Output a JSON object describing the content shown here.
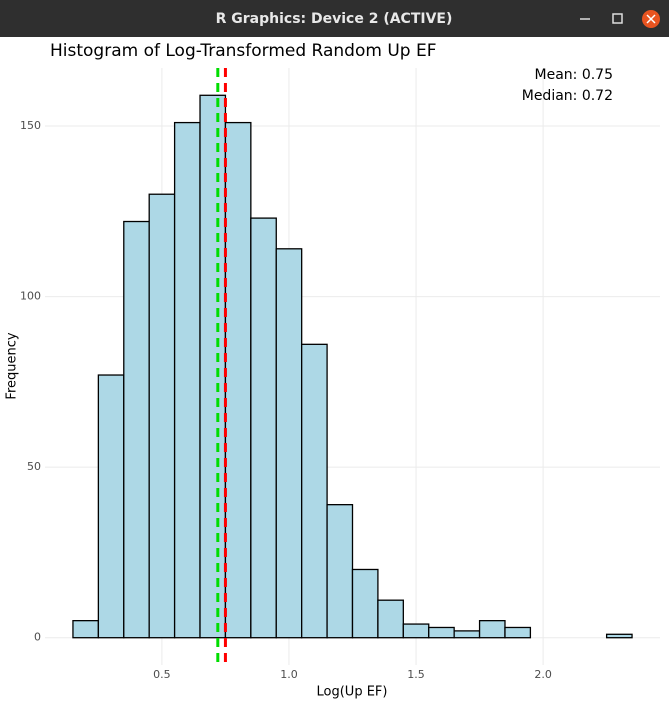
{
  "window_title": "R Graphics: Device 2 (ACTIVE)",
  "chart_data": {
    "type": "histogram",
    "title": "Histogram of Log-Transformed Random Up EF",
    "x_label": "Log(Up EF)",
    "y_label": "Frequency",
    "bins": [
      0.15,
      0.25,
      0.35,
      0.45,
      0.55,
      0.65,
      0.75,
      0.85,
      0.95,
      1.05,
      1.15,
      1.25,
      1.35,
      1.45,
      1.55,
      1.65,
      1.75,
      1.85,
      1.95,
      2.05,
      2.15,
      2.25,
      2.35
    ],
    "values": [
      5,
      77,
      122,
      130,
      151,
      159,
      151,
      123,
      114,
      86,
      39,
      20,
      11,
      4,
      3,
      2,
      5,
      3,
      0,
      0,
      0,
      1
    ],
    "color": "#add8e6",
    "edge_color": "#000000",
    "xlim": [
      0.04,
      2.46
    ],
    "ylim": [
      -8,
      167
    ],
    "xticks": [
      0.5,
      {
        "value": 1,
        "label": "1.0"
      },
      1.5,
      {
        "value": 2,
        "label": "2.0"
      }
    ],
    "yticks": [
      0,
      50,
      100,
      150
    ],
    "grid": true,
    "vlines": [
      {
        "value": 0.75,
        "color": "#ff0000",
        "label": "Mean: 0.75"
      },
      {
        "value": 0.72,
        "color": "#00dd00",
        "label": "Median: 0.72"
      }
    ]
  }
}
